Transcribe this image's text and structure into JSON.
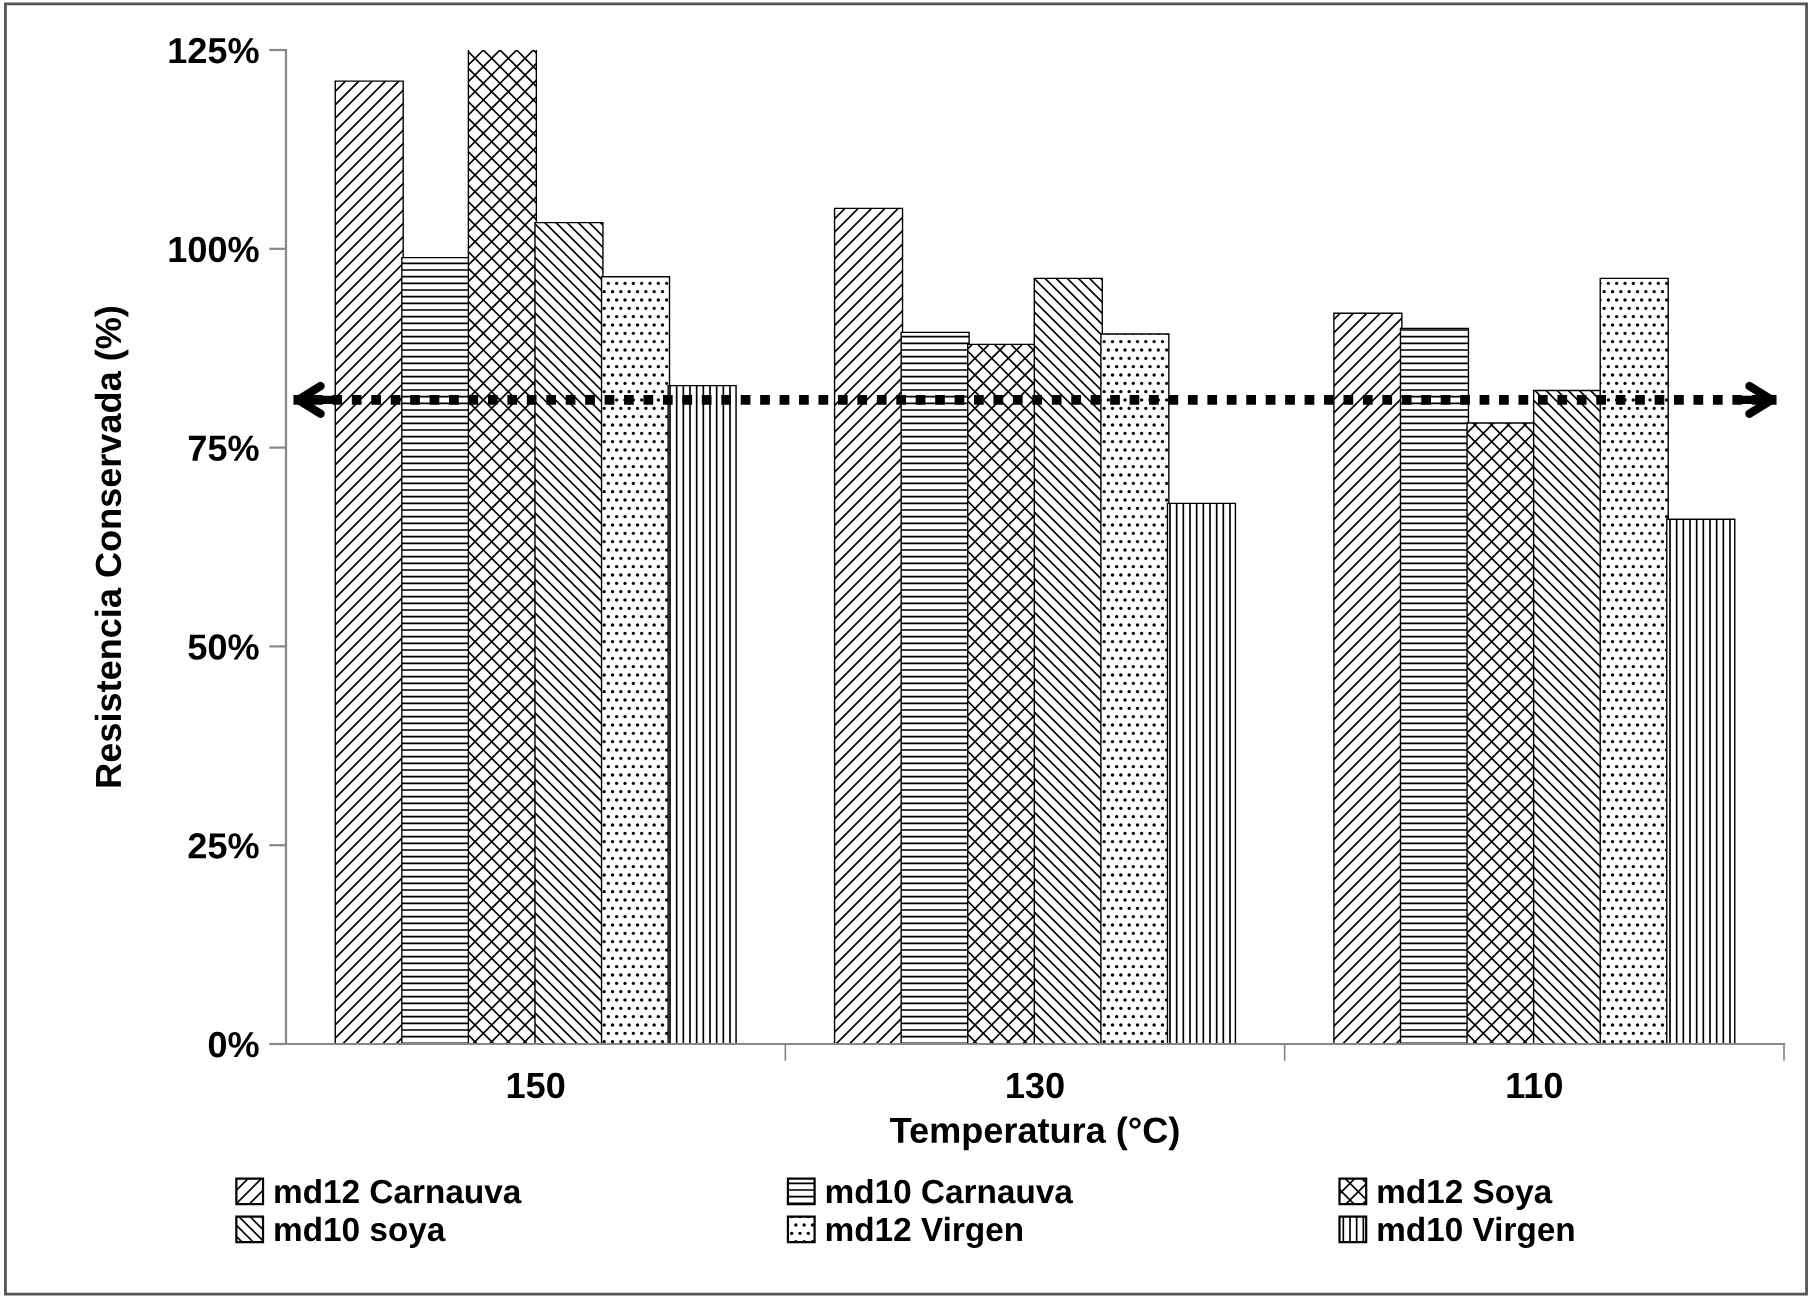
{
  "chart_data": {
    "type": "bar",
    "xlabel": "Temperatura (°C)",
    "ylabel": "Resistencia Conservada (%)",
    "categories": [
      "150",
      "130",
      "110"
    ],
    "series": [
      {
        "name": "md12 Carnauva",
        "color": "#ffffff",
        "values": [
          121,
          105,
          91.8
        ]
      },
      {
        "name": "md10 Carnauva",
        "color": "#ffffff",
        "values": [
          98.8,
          89.4,
          89.9
        ]
      },
      {
        "name": "md12 Soya",
        "color": "#ffffff",
        "values": [
          125,
          87.9,
          78
        ]
      },
      {
        "name": "md10 soya",
        "color": "#ffffff",
        "values": [
          103.2,
          96.2,
          82.1
        ]
      },
      {
        "name": "md12 Virgen",
        "color": "#ffffff",
        "values": [
          96.4,
          89.2,
          96.2
        ]
      },
      {
        "name": "md10 Virgen",
        "color": "#ffffff",
        "values": [
          82.7,
          67.9,
          65.9
        ]
      }
    ],
    "ylim": [
      0,
      125
    ],
    "yticks": [
      {
        "value": 0,
        "label": "0%"
      },
      {
        "value": 25,
        "label": "25%"
      },
      {
        "value": 50,
        "label": "50%"
      },
      {
        "value": 75,
        "label": "75%"
      },
      {
        "value": 100,
        "label": "100%"
      },
      {
        "value": 125,
        "label": "125%"
      }
    ],
    "ref_lines": [
      {
        "axis": "y",
        "value": 81,
        "label": null,
        "color": "#000000",
        "line_style": "dotted"
      }
    ],
    "grid": false,
    "legend": "bottom"
  }
}
